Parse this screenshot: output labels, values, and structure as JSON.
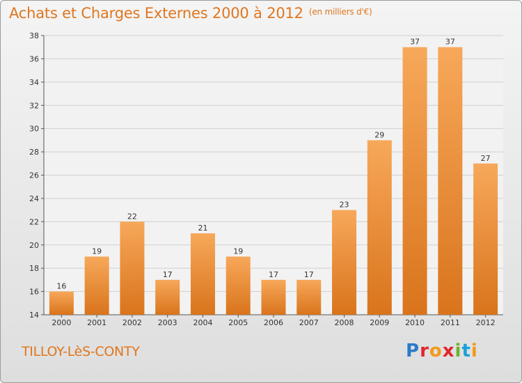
{
  "header": {
    "title": "Achats et Charges Externes 2000 à 2012",
    "subtitle": "(en milliers d'€)"
  },
  "footer": {
    "commune": "TILLOY-LèS-CONTY",
    "logo_text": "Proxiti"
  },
  "colors": {
    "accent": "#e0761f",
    "bar_top": "#f7a85a",
    "bar_bottom": "#d9741c",
    "grid": "#cfcfcf"
  },
  "chart_data": {
    "type": "bar",
    "title": "Achats et Charges Externes 2000 à 2012",
    "subtitle": "(en milliers d'€)",
    "xlabel": "",
    "ylabel": "",
    "categories": [
      "2000",
      "2001",
      "2002",
      "2003",
      "2004",
      "2005",
      "2006",
      "2007",
      "2008",
      "2009",
      "2010",
      "2011",
      "2012"
    ],
    "values": [
      16,
      19,
      22,
      17,
      21,
      19,
      17,
      17,
      23,
      29,
      37,
      37,
      27
    ],
    "ylim": [
      14,
      38
    ],
    "yticks": [
      14,
      16,
      18,
      20,
      22,
      24,
      26,
      28,
      30,
      32,
      34,
      36,
      38
    ],
    "grid": true,
    "data_labels": true
  }
}
